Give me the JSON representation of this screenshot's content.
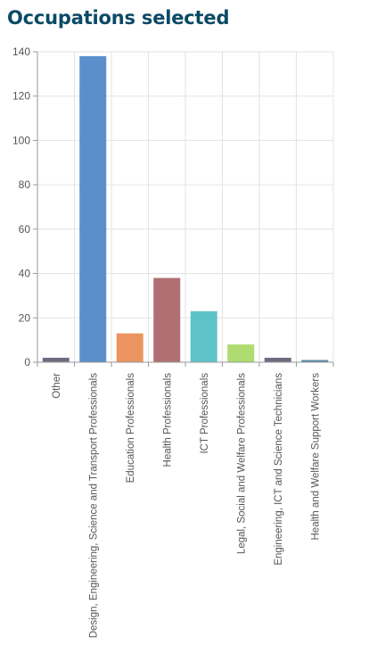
{
  "page": {
    "title": "Occupations selected"
  },
  "colors": {
    "title": "#0b4a66",
    "grid": "#e3e3e3",
    "axis": "#9a9a9a",
    "tick_text": "#555555"
  },
  "chart_data": {
    "type": "bar",
    "categories": [
      "Other",
      "Design, Engineering, Science and Transport Professionals",
      "Education Professionals",
      "Health Professionals",
      "ICT Professionals",
      "Legal, Social and Welfare Professionals",
      "Engineering, ICT and Science Technicians",
      "Health and Welfare Support Workers"
    ],
    "values": [
      2,
      138,
      13,
      38,
      23,
      8,
      2,
      1
    ],
    "bar_colors": [
      "#6c6c80",
      "#5b8fcc",
      "#ec9460",
      "#b07073",
      "#5ec3c8",
      "#aedc70",
      "#6c6c80",
      "#5b8aa6"
    ],
    "ylim": [
      0,
      140
    ],
    "yticks": [
      0,
      20,
      40,
      60,
      80,
      100,
      120,
      140
    ],
    "grid": true,
    "legend": "none",
    "xlabel": "",
    "ylabel": ""
  }
}
